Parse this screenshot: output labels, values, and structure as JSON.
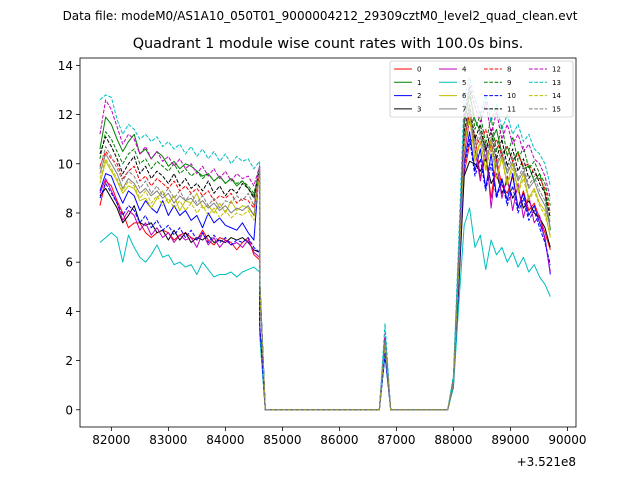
{
  "suptitle": "Data file: modeM0/AS1A10_050T01_9000004212_29309cztM0_level2_quad_clean.evt",
  "chart_data": {
    "type": "line",
    "title": "Quadrant 1 module wise count rates with 100.0s bins.",
    "xlabel": "",
    "ylabel": "",
    "x_offset_label": "+3.521e8",
    "xlim": [
      81450,
      90150
    ],
    "ylim": [
      -0.7,
      14.3
    ],
    "xticks": [
      82000,
      83000,
      84000,
      85000,
      86000,
      87000,
      88000,
      89000,
      90000
    ],
    "xtick_labels": [
      "82000",
      "83000",
      "84000",
      "85000",
      "86000",
      "87000",
      "88000",
      "89000",
      "90000"
    ],
    "yticks": [
      0,
      2,
      4,
      6,
      8,
      10,
      12,
      14
    ],
    "ytick_labels": [
      "0",
      "2",
      "4",
      "6",
      "8",
      "10",
      "12",
      "14"
    ],
    "grid": false,
    "legend_position": "top-right",
    "legend_columns": 4,
    "series": [
      {
        "name": "0",
        "color": "#ff0000",
        "dash": "solid",
        "first": [
          8.3,
          9.3,
          9.1,
          8.5,
          8.0,
          7.4,
          7.6,
          7.6,
          7.2,
          7.0,
          7.2,
          7.3,
          7.2,
          6.9,
          7.1,
          7.2,
          7.0,
          6.9,
          7.3,
          6.9,
          6.7,
          7.0,
          6.9,
          6.8,
          6.5,
          6.8,
          7.0,
          6.3,
          6.1
        ],
        "spike": 2.6,
        "second": [
          1.1,
          5.2,
          9.6,
          10.8,
          11.2,
          9.4,
          10.3,
          8.6,
          10.2,
          9.1,
          8.8,
          9.5,
          8.2,
          8.9,
          8.1,
          8.4,
          7.8,
          7.2,
          6.5
        ]
      },
      {
        "name": "1",
        "color": "#008000",
        "dash": "solid",
        "first": [
          10.6,
          11.9,
          11.6,
          11.0,
          10.5,
          10.9,
          11.2,
          10.4,
          10.6,
          10.2,
          10.5,
          10.3,
          9.9,
          10.1,
          9.8,
          10.0,
          9.9,
          9.7,
          9.5,
          9.6,
          9.3,
          9.5,
          9.2,
          9.4,
          9.1,
          9.3,
          9.0,
          8.7,
          9.5
        ],
        "spike": 2.7,
        "second": [
          1.2,
          6.2,
          11.6,
          12.8,
          11.8,
          11.3,
          10.6,
          10.9,
          11.4,
          10.4,
          10.7,
          10.1,
          10.5,
          9.8,
          9.9,
          9.3,
          9.6,
          8.8,
          7.3
        ]
      },
      {
        "name": "2",
        "color": "#0000ff",
        "dash": "solid",
        "first": [
          8.9,
          9.6,
          9.5,
          8.9,
          8.4,
          8.9,
          8.7,
          8.1,
          8.5,
          8.2,
          8.0,
          8.5,
          7.9,
          8.3,
          7.9,
          8.1,
          7.7,
          7.9,
          7.4,
          8.0,
          7.6,
          7.8,
          7.5,
          7.4,
          7.3,
          7.6,
          7.2,
          6.9,
          9.9
        ],
        "spike": 2.2,
        "second": [
          1.0,
          5.6,
          10.0,
          11.3,
          9.7,
          10.6,
          9.0,
          10.4,
          8.7,
          9.4,
          8.5,
          9.6,
          8.2,
          8.8,
          7.9,
          8.3,
          7.6,
          7.0,
          5.5
        ]
      },
      {
        "name": "3",
        "color": "#000000",
        "dash": "solid",
        "first": [
          8.7,
          9.0,
          8.6,
          8.2,
          7.6,
          7.9,
          8.3,
          7.6,
          7.5,
          7.6,
          7.2,
          7.3,
          6.9,
          7.3,
          6.9,
          7.2,
          6.8,
          7.0,
          6.9,
          7.1,
          6.8,
          6.9,
          6.8,
          7.0,
          6.9,
          7.0,
          6.8,
          6.5,
          6.4
        ],
        "spike": 2.5,
        "second": [
          1.0,
          5.0,
          9.5,
          10.1,
          10.0,
          9.7,
          10.2,
          9.2,
          9.6,
          8.8,
          9.3,
          8.6,
          9.0,
          8.2,
          8.5,
          8.0,
          7.8,
          7.4,
          6.6
        ]
      },
      {
        "name": "4",
        "color": "#bf00bf",
        "dash": "solid",
        "first": [
          8.8,
          9.4,
          8.9,
          8.4,
          7.7,
          8.1,
          7.9,
          7.3,
          7.6,
          7.1,
          7.4,
          7.0,
          7.2,
          6.8,
          7.1,
          6.9,
          7.0,
          6.6,
          7.2,
          6.7,
          7.0,
          6.6,
          6.9,
          6.7,
          6.8,
          6.6,
          6.9,
          6.4,
          6.2
        ],
        "spike": 2.4,
        "second": [
          1.0,
          5.4,
          10.3,
          11.8,
          10.6,
          9.3,
          10.8,
          8.2,
          10.1,
          8.6,
          9.5,
          8.1,
          9.2,
          7.8,
          8.7,
          7.6,
          7.9,
          6.9,
          5.6
        ]
      },
      {
        "name": "5",
        "color": "#00bfbf",
        "dash": "solid",
        "first": [
          6.8,
          7.0,
          7.2,
          7.0,
          6.0,
          7.1,
          6.6,
          6.2,
          6.0,
          6.3,
          6.7,
          6.2,
          6.3,
          5.9,
          6.0,
          5.8,
          5.9,
          5.5,
          6.0,
          5.7,
          5.4,
          5.5,
          5.5,
          5.6,
          5.4,
          5.6,
          5.7,
          5.8,
          5.6
        ],
        "spike": 2.3,
        "second": [
          0.9,
          4.3,
          7.5,
          8.2,
          6.6,
          7.1,
          5.7,
          6.9,
          6.3,
          6.6,
          6.0,
          6.4,
          5.8,
          6.2,
          5.6,
          5.9,
          5.4,
          5.1,
          4.6
        ]
      },
      {
        "name": "6",
        "color": "#bfbf00",
        "dash": "solid",
        "first": [
          9.2,
          10.1,
          9.7,
          9.3,
          8.8,
          9.1,
          9.0,
          8.5,
          8.6,
          8.2,
          8.6,
          8.9,
          8.4,
          8.7,
          8.1,
          8.5,
          8.4,
          8.8,
          8.2,
          8.3,
          8.0,
          8.4,
          8.0,
          8.5,
          8.1,
          8.3,
          8.2,
          7.9,
          9.8
        ],
        "spike": 2.8,
        "second": [
          1.1,
          5.8,
          10.7,
          12.0,
          10.1,
          10.9,
          9.8,
          11.0,
          9.4,
          10.3,
          9.2,
          10.0,
          8.9,
          9.6,
          8.6,
          9.0,
          8.4,
          8.1,
          7.0
        ]
      },
      {
        "name": "7",
        "color": "#808080",
        "dash": "solid",
        "first": [
          9.6,
          10.4,
          10.0,
          9.6,
          9.0,
          9.4,
          9.2,
          8.8,
          9.0,
          8.7,
          8.9,
          8.6,
          8.8,
          8.4,
          8.7,
          8.5,
          8.6,
          8.3,
          8.5,
          8.2,
          8.4,
          8.1,
          8.3,
          8.0,
          8.2,
          8.1,
          8.3,
          7.9,
          9.6
        ],
        "spike": 2.6,
        "second": [
          1.1,
          5.9,
          10.9,
          12.2,
          10.6,
          11.1,
          10.2,
          10.8,
          9.9,
          10.4,
          9.6,
          10.1,
          9.3,
          9.7,
          9.0,
          9.3,
          8.7,
          8.3,
          7.4
        ]
      },
      {
        "name": "8",
        "color": "#ff0000",
        "dash": "dashed",
        "first": [
          9.9,
          10.5,
          10.2,
          10.0,
          9.4,
          9.7,
          9.9,
          9.3,
          9.5,
          9.1,
          9.4,
          9.2,
          9.0,
          9.3,
          8.9,
          9.1,
          8.8,
          9.0,
          8.7,
          8.9,
          8.5,
          8.7,
          8.6,
          8.8,
          8.4,
          8.6,
          8.5,
          8.2,
          9.7
        ],
        "spike": 2.9,
        "second": [
          1.2,
          6.0,
          11.0,
          12.1,
          11.1,
          10.8,
          11.4,
          10.5,
          11.0,
          10.3,
          10.7,
          10.1,
          10.4,
          9.9,
          10.0,
          9.6,
          9.4,
          9.0,
          8.0
        ]
      },
      {
        "name": "9",
        "color": "#008000",
        "dash": "dashed",
        "first": [
          10.2,
          11.3,
          11.0,
          10.5,
          10.0,
          10.4,
          10.6,
          10.0,
          10.2,
          9.8,
          10.1,
          9.9,
          9.7,
          10.0,
          9.6,
          9.8,
          9.5,
          9.7,
          9.4,
          9.6,
          9.3,
          9.5,
          9.2,
          9.4,
          9.2,
          9.3,
          9.1,
          8.8,
          9.7
        ],
        "spike": 2.9,
        "second": [
          1.2,
          6.3,
          11.8,
          13.1,
          11.4,
          12.0,
          10.8,
          11.9,
          10.5,
          11.6,
          10.3,
          11.1,
          10.1,
          10.7,
          9.8,
          10.1,
          9.6,
          9.2,
          8.3
        ]
      },
      {
        "name": "10",
        "color": "#0000ff",
        "dash": "dashed",
        "first": [
          8.6,
          9.2,
          8.8,
          8.4,
          7.9,
          8.3,
          8.1,
          7.6,
          7.9,
          7.4,
          7.7,
          7.3,
          7.5,
          7.1,
          7.4,
          7.0,
          7.3,
          6.9,
          7.2,
          6.8,
          7.1,
          6.8,
          7.0,
          6.7,
          6.9,
          6.8,
          7.0,
          6.6,
          6.4
        ],
        "spike": 2.3,
        "second": [
          1.0,
          5.3,
          9.9,
          11.0,
          9.5,
          10.2,
          8.9,
          10.0,
          8.6,
          9.3,
          8.3,
          9.1,
          8.0,
          8.6,
          7.7,
          8.1,
          7.4,
          6.8,
          5.9
        ]
      },
      {
        "name": "11",
        "color": "#000000",
        "dash": "dashed",
        "first": [
          10.4,
          11.1,
          10.7,
          10.2,
          9.6,
          10.0,
          10.3,
          9.6,
          9.9,
          9.4,
          9.7,
          9.5,
          9.2,
          9.6,
          9.1,
          9.4,
          9.0,
          9.2,
          8.9,
          9.3,
          8.8,
          9.1,
          8.7,
          9.0,
          8.8,
          9.2,
          9.0,
          8.6,
          9.9
        ],
        "spike": 2.8,
        "second": [
          1.2,
          6.1,
          11.3,
          12.4,
          11.0,
          11.6,
          10.5,
          11.4,
          10.2,
          11.0,
          9.9,
          10.6,
          9.7,
          10.2,
          9.4,
          9.8,
          9.2,
          8.8,
          7.8
        ]
      },
      {
        "name": "12",
        "color": "#bf00bf",
        "dash": "dashed",
        "first": [
          11.2,
          12.6,
          12.2,
          11.5,
          10.8,
          11.2,
          11.0,
          10.4,
          10.7,
          10.2,
          10.5,
          10.1,
          10.3,
          9.9,
          10.2,
          9.8,
          10.0,
          9.6,
          9.9,
          9.5,
          9.8,
          9.4,
          9.7,
          9.3,
          9.6,
          9.4,
          9.5,
          9.1,
          9.9
        ],
        "spike": 3.1,
        "second": [
          1.3,
          6.5,
          12.0,
          13.2,
          12.3,
          11.7,
          12.5,
          11.2,
          12.1,
          11.0,
          11.6,
          10.8,
          11.2,
          10.5,
          10.8,
          10.2,
          10.0,
          9.5,
          8.6
        ]
      },
      {
        "name": "13",
        "color": "#00bfbf",
        "dash": "dashed",
        "first": [
          12.6,
          12.8,
          12.7,
          11.8,
          11.2,
          11.6,
          11.4,
          11.0,
          11.2,
          10.9,
          11.1,
          10.7,
          10.9,
          10.6,
          10.8,
          10.4,
          10.7,
          10.3,
          10.6,
          10.2,
          10.5,
          10.1,
          10.4,
          10.0,
          10.3,
          10.1,
          10.2,
          9.8,
          10.1
        ],
        "spike": 3.5,
        "second": [
          1.4,
          7.0,
          12.7,
          13.5,
          12.6,
          12.0,
          12.8,
          11.7,
          12.4,
          11.4,
          12.0,
          11.2,
          11.6,
          10.9,
          11.2,
          10.6,
          10.4,
          10.0,
          9.1
        ]
      },
      {
        "name": "14",
        "color": "#bfbf00",
        "dash": "dashed",
        "first": [
          9.4,
          10.2,
          9.8,
          9.4,
          8.9,
          9.3,
          9.1,
          8.6,
          8.9,
          8.4,
          8.7,
          8.3,
          8.6,
          8.2,
          8.5,
          8.1,
          8.4,
          8.0,
          8.3,
          7.9,
          8.2,
          7.8,
          8.1,
          7.8,
          8.0,
          7.9,
          8.1,
          7.7,
          9.5
        ],
        "spike": 2.7,
        "second": [
          1.1,
          5.7,
          10.6,
          11.8,
          10.3,
          10.9,
          9.7,
          10.7,
          9.4,
          10.2,
          9.1,
          9.8,
          8.8,
          9.4,
          8.5,
          8.9,
          8.3,
          7.9,
          7.1
        ]
      },
      {
        "name": "15",
        "color": "#808080",
        "dash": "dashed",
        "first": [
          9.8,
          10.7,
          10.3,
          9.8,
          9.3,
          9.7,
          9.5,
          9.0,
          9.3,
          8.8,
          9.1,
          8.7,
          9.0,
          8.6,
          8.9,
          8.5,
          8.8,
          8.4,
          8.7,
          8.3,
          8.6,
          8.2,
          8.5,
          8.4,
          8.7,
          8.5,
          8.8,
          8.3,
          9.8
        ],
        "spike": 2.8,
        "second": [
          1.1,
          6.0,
          11.1,
          12.3,
          10.8,
          11.3,
          10.3,
          11.1,
          10.0,
          10.6,
          9.7,
          10.3,
          9.4,
          9.9,
          9.1,
          9.5,
          8.9,
          8.5,
          7.6
        ]
      }
    ]
  }
}
